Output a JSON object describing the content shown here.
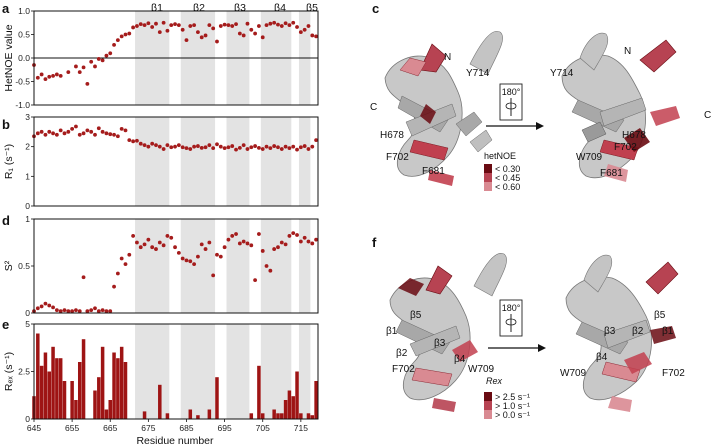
{
  "panels": {
    "a": "a",
    "b": "b",
    "c": "c",
    "d": "d",
    "e": "e",
    "f": "f"
  },
  "strand_labels": [
    "β1",
    "β2",
    "β3",
    "β4",
    "β5"
  ],
  "x_axis": {
    "title": "Residue number",
    "ticks": [
      "645",
      "655",
      "665",
      "675",
      "685",
      "695",
      "705",
      "715"
    ]
  },
  "chart_data": [
    {
      "type": "scatter",
      "panel": "a",
      "ylabel": "HetNOE value",
      "ylim": [
        -1.0,
        1.0
      ],
      "yticks": [
        "1.0",
        "0.5",
        "0.0",
        "-0.5",
        "-1.0"
      ],
      "x": [
        645,
        646,
        647,
        648,
        649,
        650,
        651,
        652,
        654,
        656,
        657,
        658,
        659,
        660,
        661,
        662,
        663,
        664,
        665,
        666,
        667,
        668,
        669,
        670,
        671,
        672,
        673,
        674,
        675,
        676,
        677,
        678,
        679,
        680,
        681,
        682,
        683,
        684,
        685,
        686,
        687,
        688,
        689,
        690,
        691,
        692,
        693,
        694,
        695,
        696,
        697,
        698,
        699,
        700,
        701,
        702,
        703,
        704,
        705,
        706,
        707,
        708,
        709,
        710,
        711,
        712,
        713,
        714,
        715,
        716,
        717,
        718,
        719
      ],
      "y": [
        -0.15,
        -0.42,
        -0.35,
        -0.45,
        -0.4,
        -0.38,
        -0.35,
        -0.38,
        -0.3,
        -0.18,
        -0.3,
        -0.2,
        -0.55,
        -0.08,
        -0.18,
        -0.02,
        -0.05,
        0.05,
        0.1,
        0.28,
        0.38,
        0.46,
        0.5,
        0.52,
        0.65,
        0.68,
        0.72,
        0.7,
        0.74,
        0.66,
        0.73,
        0.55,
        0.75,
        0.58,
        0.7,
        0.72,
        0.7,
        0.6,
        0.38,
        0.68,
        0.7,
        0.55,
        0.44,
        0.48,
        0.7,
        0.63,
        0.35,
        0.68,
        0.71,
        0.7,
        0.68,
        0.72,
        0.52,
        0.48,
        0.73,
        0.6,
        0.52,
        0.68,
        0.44,
        0.7,
        0.73,
        0.75,
        0.71,
        0.68,
        0.74,
        0.7,
        0.75,
        0.66,
        0.55,
        0.6,
        0.68,
        0.48,
        0.46
      ]
    },
    {
      "type": "scatter",
      "panel": "b",
      "ylabel": "R₁ (s⁻¹)",
      "ylim": [
        0,
        3
      ],
      "yticks": [
        "3",
        "2",
        "1",
        "0"
      ],
      "x": [
        645,
        646,
        647,
        648,
        649,
        650,
        651,
        652,
        653,
        654,
        655,
        656,
        657,
        658,
        659,
        660,
        661,
        662,
        663,
        664,
        665,
        666,
        667,
        668,
        669,
        670,
        671,
        672,
        673,
        674,
        675,
        676,
        677,
        678,
        679,
        680,
        681,
        682,
        683,
        684,
        685,
        686,
        687,
        688,
        689,
        690,
        691,
        692,
        693,
        694,
        695,
        696,
        697,
        698,
        699,
        700,
        701,
        702,
        703,
        704,
        705,
        706,
        707,
        708,
        709,
        710,
        711,
        712,
        713,
        714,
        715,
        716,
        717,
        718,
        719
      ],
      "y": [
        2.35,
        2.45,
        2.5,
        2.4,
        2.5,
        2.45,
        2.4,
        2.55,
        2.45,
        2.5,
        2.6,
        2.68,
        2.4,
        2.45,
        2.55,
        2.5,
        2.4,
        2.62,
        2.5,
        2.45,
        2.42,
        2.4,
        2.35,
        2.6,
        2.55,
        2.22,
        2.18,
        2.2,
        2.1,
        2.05,
        2.0,
        2.1,
        2.05,
        2.0,
        1.92,
        2.05,
        1.98,
        2.0,
        2.05,
        1.98,
        1.95,
        1.92,
        2.0,
        2.02,
        1.96,
        1.98,
        2.05,
        1.95,
        2.08,
        2.0,
        1.95,
        1.98,
        2.02,
        1.9,
        1.96,
        2.05,
        1.92,
        1.98,
        2.02,
        1.96,
        1.92,
        2.0,
        1.95,
        2.02,
        1.98,
        1.92,
        2.0,
        1.95,
        2.0,
        1.9,
        1.98,
        2.02,
        1.92,
        2.0,
        2.22
      ]
    },
    {
      "type": "scatter",
      "panel": "d",
      "ylabel": "S²",
      "ylim": [
        0,
        1
      ],
      "yticks": [
        "1",
        "0.5",
        "0"
      ],
      "x": [
        645,
        646,
        647,
        648,
        649,
        650,
        651,
        652,
        653,
        654,
        655,
        656,
        657,
        658,
        659,
        660,
        661,
        662,
        663,
        664,
        665,
        666,
        667,
        668,
        669,
        670,
        671,
        672,
        673,
        674,
        675,
        676,
        677,
        678,
        679,
        680,
        681,
        682,
        683,
        684,
        685,
        686,
        687,
        688,
        689,
        690,
        691,
        692,
        693,
        694,
        695,
        696,
        697,
        698,
        699,
        700,
        701,
        702,
        703,
        704,
        705,
        706,
        707,
        708,
        709,
        710,
        711,
        712,
        713,
        714,
        715,
        716,
        717,
        718,
        719
      ],
      "y": [
        0.02,
        0.05,
        0.07,
        0.1,
        0.08,
        0.06,
        0.03,
        0.02,
        0.03,
        0.02,
        0.02,
        0.03,
        0.02,
        0.38,
        0.02,
        0.03,
        0.05,
        0.02,
        0.03,
        0.02,
        0.02,
        0.28,
        0.42,
        0.58,
        0.52,
        0.62,
        0.82,
        0.75,
        0.7,
        0.73,
        0.78,
        0.7,
        0.68,
        0.75,
        0.72,
        0.82,
        0.8,
        0.7,
        0.64,
        0.58,
        0.56,
        0.55,
        0.52,
        0.6,
        0.73,
        0.68,
        0.75,
        0.4,
        0.62,
        0.6,
        0.7,
        0.78,
        0.82,
        0.84,
        0.74,
        0.76,
        0.74,
        0.72,
        0.35,
        0.84,
        0.66,
        0.5,
        0.45,
        0.68,
        0.7,
        0.75,
        0.73,
        0.82,
        0.85,
        0.83,
        0.76,
        0.8,
        0.76,
        0.74,
        0.78
      ]
    },
    {
      "type": "bar",
      "panel": "e",
      "ylabel": "Rₑₓ (s⁻¹)",
      "ylim": [
        0,
        5
      ],
      "yticks": [
        "5",
        "2.5",
        "0"
      ],
      "x": [
        645,
        646,
        647,
        648,
        649,
        650,
        651,
        652,
        653,
        654,
        655,
        656,
        657,
        658,
        659,
        660,
        661,
        662,
        663,
        664,
        665,
        666,
        667,
        668,
        669,
        670,
        671,
        672,
        673,
        674,
        675,
        676,
        677,
        678,
        679,
        680,
        681,
        682,
        683,
        684,
        685,
        686,
        687,
        688,
        689,
        690,
        691,
        692,
        693,
        694,
        695,
        696,
        697,
        698,
        699,
        700,
        701,
        702,
        703,
        704,
        705,
        706,
        707,
        708,
        709,
        710,
        711,
        712,
        713,
        714,
        715,
        716,
        717,
        718,
        719
      ],
      "values": [
        1.2,
        4.5,
        2.8,
        3.5,
        2.5,
        3.8,
        3.2,
        3.2,
        2.0,
        0.0,
        2.0,
        1.0,
        3.0,
        4.2,
        0.0,
        0.0,
        1.5,
        2.2,
        3.8,
        0.5,
        1.0,
        3.5,
        3.2,
        3.8,
        3.0,
        0.0,
        0.0,
        0.0,
        0.0,
        0.4,
        0.0,
        0.0,
        0.0,
        1.8,
        0.0,
        0.3,
        0.0,
        0.0,
        0.0,
        0.0,
        0.0,
        0.5,
        0.0,
        0.2,
        0.0,
        0.0,
        0.5,
        0.0,
        2.2,
        0.0,
        0.0,
        0.0,
        0.0,
        0.0,
        0.0,
        0.0,
        0.0,
        0.3,
        0.0,
        2.8,
        0.3,
        0.0,
        0.0,
        0.5,
        0.3,
        0.3,
        1.0,
        1.5,
        1.2,
        2.5,
        0.3,
        0.0,
        0.3,
        0.2,
        2.0
      ]
    }
  ],
  "shaded_ranges": [
    [
      672,
      680
    ],
    [
      684,
      692
    ],
    [
      696,
      701
    ],
    [
      705,
      712
    ],
    [
      715,
      717
    ]
  ],
  "colors": {
    "point": "#a51c1c",
    "bar": "#9e1414",
    "shade": "#e3e3e3",
    "ribbon": "#c4c4c4",
    "ribbon_dark": "#8e8e8e",
    "accent_dark": "#6a0b12",
    "accent_mid": "#c2404f",
    "accent_light": "#d98a92"
  },
  "structure_c": {
    "labels_left": [
      "N",
      "C",
      "Y714",
      "H678",
      "F702",
      "F681"
    ],
    "labels_right": [
      "Y714",
      "N",
      "H678",
      "C",
      "F702",
      "W709",
      "F681"
    ],
    "rotation": "180°"
  },
  "legend_c": {
    "title": "hetNOE",
    "items": [
      "< 0.30",
      "< 0.45",
      "< 0.60"
    ]
  },
  "structure_f": {
    "labels_left": [
      "β5",
      "β1",
      "β2",
      "β3",
      "β4",
      "F702",
      "W709"
    ],
    "labels_right": [
      "β5",
      "β3",
      "β2",
      "β1",
      "β4",
      "W709",
      "F702"
    ],
    "rotation": "180°"
  },
  "legend_f": {
    "title": "Rex",
    "items": [
      "> 2.5 s⁻¹",
      "> 1.0 s⁻¹",
      "> 0.0 s⁻¹"
    ]
  }
}
